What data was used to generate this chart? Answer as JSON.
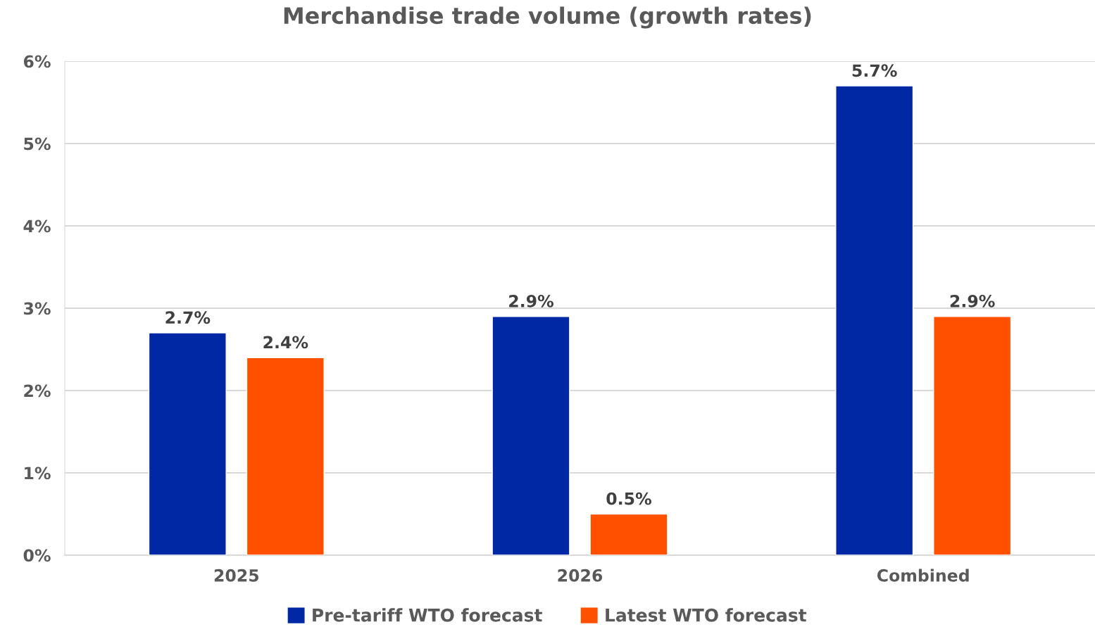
{
  "chart_data": {
    "type": "bar",
    "title": "Merchandise trade volume (growth rates)",
    "categories": [
      "2025",
      "2026",
      "Combined"
    ],
    "series": [
      {
        "name": "Pre-tariff WTO forecast",
        "color": "#0028a5",
        "values": [
          2.7,
          2.9,
          5.7
        ],
        "value_labels": [
          "2.7%",
          "2.9%",
          "5.7%"
        ]
      },
      {
        "name": "Latest WTO forecast",
        "color": "#ff5000",
        "values": [
          2.4,
          0.5,
          2.9
        ],
        "value_labels": [
          "2.4%",
          "0.5%",
          "2.9%"
        ]
      }
    ],
    "ylim": [
      0,
      6
    ],
    "yticks": [
      {
        "value": 0,
        "label": "0%"
      },
      {
        "value": 1,
        "label": "1%"
      },
      {
        "value": 2,
        "label": "2%"
      },
      {
        "value": 3,
        "label": "3%"
      },
      {
        "value": 4,
        "label": "4%"
      },
      {
        "value": 5,
        "label": "5%"
      },
      {
        "value": 6,
        "label": "6%"
      }
    ],
    "grid": "y",
    "legend": "bottom"
  }
}
